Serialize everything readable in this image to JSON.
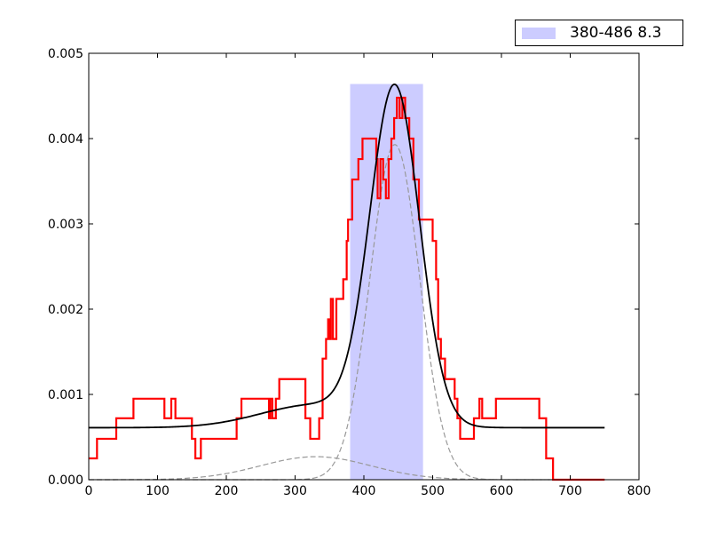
{
  "chart_data": {
    "type": "line",
    "xlim": [
      0,
      800
    ],
    "ylim": [
      0,
      0.005
    ],
    "x_ticks": [
      0,
      100,
      200,
      300,
      400,
      500,
      600,
      700,
      800
    ],
    "y_ticks": [
      0.0,
      0.001,
      0.002,
      0.003,
      0.004,
      0.005
    ],
    "x_tick_labels": [
      "0",
      "100",
      "200",
      "300",
      "400",
      "500",
      "600",
      "700",
      "800"
    ],
    "y_tick_labels": [
      "0.000",
      "0.001",
      "0.002",
      "0.003",
      "0.004",
      "0.005"
    ],
    "legend_position": "top-right, above plot",
    "grid": false,
    "colors": {
      "histogram": "#ff0000",
      "fit": "#000000",
      "components": "#999999",
      "band": "#ccccff"
    },
    "band": {
      "label": "380-486 8.3",
      "x_start": 380,
      "x_end": 486,
      "y_top": 0.00464
    },
    "histogram_step": {
      "points": [
        [
          0,
          0.00025
        ],
        [
          12,
          0.00025
        ],
        [
          12,
          0.00048
        ],
        [
          40,
          0.00048
        ],
        [
          40,
          0.00072
        ],
        [
          65,
          0.00072
        ],
        [
          65,
          0.00095
        ],
        [
          110,
          0.00095
        ],
        [
          110,
          0.00072
        ],
        [
          120,
          0.00072
        ],
        [
          120,
          0.00095
        ],
        [
          126,
          0.00095
        ],
        [
          126,
          0.00072
        ],
        [
          150,
          0.00072
        ],
        [
          150,
          0.00048
        ],
        [
          155,
          0.00048
        ],
        [
          155,
          0.00025
        ],
        [
          163,
          0.00025
        ],
        [
          163,
          0.00048
        ],
        [
          215,
          0.00048
        ],
        [
          215,
          0.00072
        ],
        [
          222,
          0.00072
        ],
        [
          222,
          0.00095
        ],
        [
          262,
          0.00095
        ],
        [
          262,
          0.00072
        ],
        [
          264,
          0.00072
        ],
        [
          264,
          0.00095
        ],
        [
          267,
          0.00095
        ],
        [
          267,
          0.00072
        ],
        [
          272,
          0.00072
        ],
        [
          272,
          0.00095
        ],
        [
          277,
          0.00095
        ],
        [
          277,
          0.00118
        ],
        [
          315,
          0.00118
        ],
        [
          315,
          0.00072
        ],
        [
          322,
          0.00072
        ],
        [
          322,
          0.00048
        ],
        [
          335,
          0.00048
        ],
        [
          335,
          0.00072
        ],
        [
          340,
          0.00072
        ],
        [
          340,
          0.00142
        ],
        [
          345,
          0.00142
        ],
        [
          345,
          0.00165
        ],
        [
          348,
          0.00165
        ],
        [
          348,
          0.00188
        ],
        [
          350,
          0.00188
        ],
        [
          350,
          0.00165
        ],
        [
          352,
          0.00165
        ],
        [
          352,
          0.00212
        ],
        [
          355,
          0.00212
        ],
        [
          355,
          0.00165
        ],
        [
          360,
          0.00165
        ],
        [
          360,
          0.00212
        ],
        [
          370,
          0.00212
        ],
        [
          370,
          0.00235
        ],
        [
          375,
          0.00235
        ],
        [
          375,
          0.0028
        ],
        [
          377,
          0.0028
        ],
        [
          377,
          0.00305
        ],
        [
          383,
          0.00305
        ],
        [
          383,
          0.00352
        ],
        [
          392,
          0.00352
        ],
        [
          392,
          0.00376
        ],
        [
          398,
          0.00376
        ],
        [
          398,
          0.004
        ],
        [
          418,
          0.004
        ],
        [
          418,
          0.00376
        ],
        [
          420,
          0.00376
        ],
        [
          420,
          0.0033
        ],
        [
          424,
          0.0033
        ],
        [
          424,
          0.00376
        ],
        [
          428,
          0.00376
        ],
        [
          428,
          0.00352
        ],
        [
          432,
          0.00352
        ],
        [
          432,
          0.0033
        ],
        [
          436,
          0.0033
        ],
        [
          436,
          0.00376
        ],
        [
          440,
          0.00376
        ],
        [
          440,
          0.004
        ],
        [
          444,
          0.004
        ],
        [
          444,
          0.00424
        ],
        [
          448,
          0.00424
        ],
        [
          448,
          0.00448
        ],
        [
          452,
          0.00448
        ],
        [
          452,
          0.00424
        ],
        [
          456,
          0.00424
        ],
        [
          456,
          0.00448
        ],
        [
          460,
          0.00448
        ],
        [
          460,
          0.00424
        ],
        [
          466,
          0.00424
        ],
        [
          466,
          0.004
        ],
        [
          472,
          0.004
        ],
        [
          472,
          0.00352
        ],
        [
          480,
          0.00352
        ],
        [
          480,
          0.00305
        ],
        [
          500,
          0.00305
        ],
        [
          500,
          0.0028
        ],
        [
          505,
          0.0028
        ],
        [
          505,
          0.00235
        ],
        [
          508,
          0.00235
        ],
        [
          508,
          0.00165
        ],
        [
          512,
          0.00165
        ],
        [
          512,
          0.00142
        ],
        [
          518,
          0.00142
        ],
        [
          518,
          0.00118
        ],
        [
          532,
          0.00118
        ],
        [
          532,
          0.00095
        ],
        [
          536,
          0.00095
        ],
        [
          536,
          0.00072
        ],
        [
          540,
          0.00072
        ],
        [
          540,
          0.00048
        ],
        [
          560,
          0.00048
        ],
        [
          560,
          0.00072
        ],
        [
          568,
          0.00072
        ],
        [
          568,
          0.00095
        ],
        [
          572,
          0.00095
        ],
        [
          572,
          0.00072
        ],
        [
          592,
          0.00072
        ],
        [
          592,
          0.00095
        ],
        [
          655,
          0.00095
        ],
        [
          655,
          0.00072
        ],
        [
          665,
          0.00072
        ],
        [
          665,
          0.00025
        ],
        [
          675,
          0.00025
        ],
        [
          675,
          0.0
        ],
        [
          750,
          0.0
        ]
      ]
    },
    "fit_model": {
      "baseline": 0.00061,
      "peak_center": 445,
      "peak_amplitude": 0.00393,
      "peak_sigma": 36,
      "broad_center": 330,
      "broad_amplitude": 0.00027,
      "broad_sigma": 80,
      "x_start": 0,
      "x_end": 750
    }
  }
}
